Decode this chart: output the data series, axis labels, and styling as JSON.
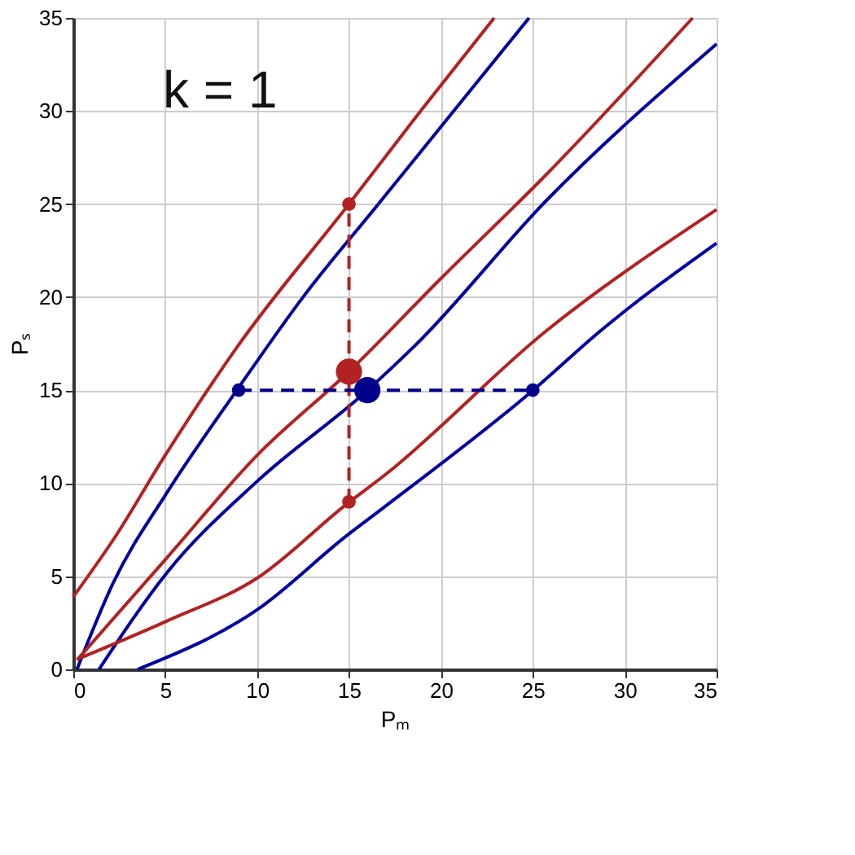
{
  "chart_data": {
    "type": "line",
    "xlabel": "Pₘ",
    "ylabel": "Pₛ",
    "annotations": [
      "k = 1"
    ],
    "xlim": [
      0,
      35
    ],
    "ylim": [
      0,
      35
    ],
    "xticks": [
      0,
      5,
      10,
      15,
      20,
      25,
      30,
      35
    ],
    "yticks": [
      0,
      5,
      10,
      15,
      20,
      25,
      30,
      35
    ],
    "grid": true,
    "series": [
      {
        "color": "#b22222",
        "x": [
          0,
          2.2,
          5,
          8.9,
          15,
          18.9,
          22.9
        ],
        "values": [
          3.9,
          7,
          11.5,
          17.3,
          25,
          30,
          35
        ]
      },
      {
        "color": "#0000a0",
        "x": [
          0.2,
          2.15,
          5.1,
          8.9,
          12.5,
          16.6,
          20.7,
          24.8
        ],
        "values": [
          0,
          4.6,
          9.5,
          15,
          20,
          25,
          30,
          35
        ]
      },
      {
        "color": "#b22222",
        "x": [
          0.2,
          5.1,
          10,
          15,
          20,
          25.75,
          33.7
        ],
        "values": [
          0.5,
          6,
          11.5,
          16,
          21,
          26.6,
          35
        ]
      },
      {
        "color": "#0000a0",
        "x": [
          1.4,
          5.1,
          10,
          15.9,
          18.7,
          25.75,
          35
        ],
        "values": [
          0,
          5.2,
          10.1,
          14.9,
          17.5,
          25.2,
          33.6
        ]
      },
      {
        "color": "#b22222",
        "x": [
          0.35,
          5.1,
          10,
          14.9,
          16.9,
          25.75,
          35
        ],
        "values": [
          0.6,
          2.6,
          4.9,
          8.9,
          10.4,
          18.2,
          24.7
        ]
      },
      {
        "color": "#0000a0",
        "x": [
          3.5,
          10,
          14.9,
          16.9,
          24.9,
          28.7,
          35
        ],
        "values": [
          0,
          3.2,
          7.2,
          8.7,
          14.9,
          18.2,
          22.9
        ]
      },
      {
        "color": "#b22222",
        "line_style": "dashed",
        "x": [
          15,
          15
        ],
        "values": [
          9,
          25
        ]
      },
      {
        "color": "#00008b",
        "line_style": "dashed",
        "x": [
          9,
          25
        ],
        "values": [
          15,
          15
        ]
      },
      {
        "type": "scatter",
        "color": "#b22222",
        "x": [
          15,
          15
        ],
        "values": [
          25,
          9
        ]
      },
      {
        "type": "scatter",
        "color": "#00008b",
        "x": [
          9,
          25
        ],
        "values": [
          15,
          15
        ]
      },
      {
        "type": "bubble",
        "colors": [
          "#b22222",
          "#00008b"
        ],
        "x": [
          15,
          16
        ],
        "values": [
          16,
          15
        ],
        "sizes": [
          1,
          1
        ]
      }
    ]
  }
}
